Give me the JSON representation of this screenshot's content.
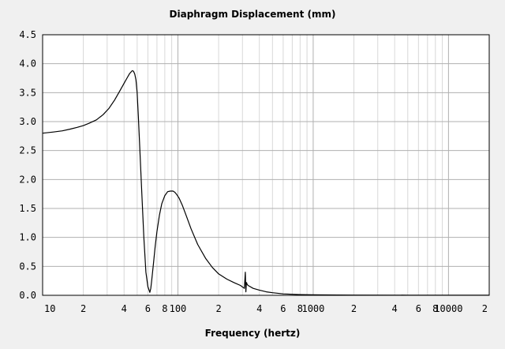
{
  "chart_data": {
    "type": "line",
    "title": "Diaphragm Displacement (mm)",
    "xlabel": "Frequency (hertz)",
    "ylabel": "",
    "x_scale": "log",
    "xlim": [
      10,
      20000
    ],
    "ylim": [
      0,
      4.5
    ],
    "grid": true,
    "legend": "none",
    "y_ticks": [
      {
        "value": 0,
        "label": "0.0"
      },
      {
        "value": 0.5,
        "label": "0.5"
      },
      {
        "value": 1.0,
        "label": "1.0"
      },
      {
        "value": 1.5,
        "label": "1.5"
      },
      {
        "value": 2.0,
        "label": "2.0"
      },
      {
        "value": 2.5,
        "label": "2.5"
      },
      {
        "value": 3.0,
        "label": "3.0"
      },
      {
        "value": 3.5,
        "label": "3.5"
      },
      {
        "value": 4.0,
        "label": "4.0"
      },
      {
        "value": 4.5,
        "label": "4.5"
      }
    ],
    "x_ticks": [
      {
        "value": 10,
        "label": "10"
      },
      {
        "value": 20,
        "label": "2"
      },
      {
        "value": 40,
        "label": "4"
      },
      {
        "value": 60,
        "label": "6"
      },
      {
        "value": 80,
        "label": "8"
      },
      {
        "value": 100,
        "label": "100"
      },
      {
        "value": 200,
        "label": "2"
      },
      {
        "value": 400,
        "label": "4"
      },
      {
        "value": 600,
        "label": "6"
      },
      {
        "value": 800,
        "label": "8"
      },
      {
        "value": 1000,
        "label": "1000"
      },
      {
        "value": 2000,
        "label": "2"
      },
      {
        "value": 4000,
        "label": "4"
      },
      {
        "value": 6000,
        "label": "6"
      },
      {
        "value": 8000,
        "label": "8"
      },
      {
        "value": 10000,
        "label": "10000"
      },
      {
        "value": 20000,
        "label": "2"
      }
    ],
    "colors": {
      "background": "#f0f0f0",
      "plot_background": "#ffffff",
      "grid_minor": "#d8d8d8",
      "grid_major": "#b0b0b0",
      "line": "#000000"
    },
    "series": [
      {
        "x": [
          10,
          12,
          14,
          16,
          18,
          20,
          22,
          25,
          28,
          31,
          34,
          37,
          40,
          42,
          44,
          46,
          47,
          48,
          49,
          50,
          51,
          52,
          54,
          56,
          58,
          60,
          62,
          63,
          64,
          66,
          68,
          70,
          73,
          76,
          80,
          84,
          88,
          92,
          95,
          98,
          102,
          108,
          115,
          125,
          140,
          160,
          180,
          200,
          230,
          260,
          290,
          310,
          315,
          318,
          320,
          322,
          325,
          330,
          360,
          400,
          450,
          500,
          600,
          700,
          800,
          1000,
          1500,
          2000,
          5000,
          10000,
          20000
        ],
        "y": [
          2.8,
          2.82,
          2.84,
          2.87,
          2.9,
          2.93,
          2.97,
          3.03,
          3.12,
          3.23,
          3.37,
          3.52,
          3.66,
          3.75,
          3.83,
          3.88,
          3.87,
          3.82,
          3.72,
          3.5,
          3.1,
          2.65,
          1.8,
          1.0,
          0.4,
          0.15,
          0.05,
          0.12,
          0.25,
          0.55,
          0.85,
          1.1,
          1.38,
          1.58,
          1.72,
          1.79,
          1.8,
          1.8,
          1.78,
          1.74,
          1.68,
          1.55,
          1.38,
          1.15,
          0.88,
          0.64,
          0.48,
          0.37,
          0.28,
          0.22,
          0.17,
          0.12,
          0.4,
          0.06,
          0.18,
          0.22,
          0.19,
          0.17,
          0.12,
          0.09,
          0.06,
          0.045,
          0.025,
          0.018,
          0.012,
          0.008,
          0.005,
          0.004,
          0.003,
          0.002,
          0.002
        ]
      }
    ]
  }
}
